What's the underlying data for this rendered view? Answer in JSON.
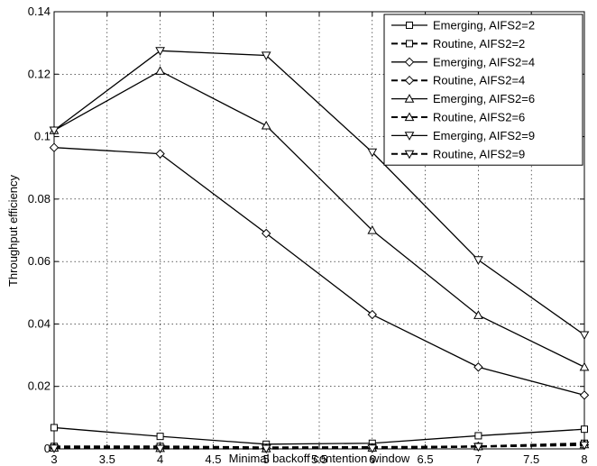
{
  "chart_data": {
    "type": "line",
    "title": "",
    "xlabel": "Minimal backoff contention window",
    "ylabel": "Throughput efficiency",
    "xlim": [
      3,
      8
    ],
    "ylim": [
      0,
      0.14
    ],
    "x": [
      3,
      4,
      5,
      6,
      7,
      8
    ],
    "xticks": [
      "3",
      "3.5",
      "4",
      "4.5",
      "5",
      "5.5",
      "6",
      "6.5",
      "7",
      "7.5",
      "8"
    ],
    "yticks": [
      "0",
      "0.02",
      "0.04",
      "0.06",
      "0.08",
      "0.1",
      "0.12",
      "0.14"
    ],
    "grid": true,
    "legend_position": "top-right",
    "series": [
      {
        "name": "Emerging, AIFS2=2",
        "marker": "square",
        "dashed": false,
        "values": [
          0.0068,
          0.004,
          0.0015,
          0.0018,
          0.0042,
          0.0063
        ]
      },
      {
        "name": "Routine, AIFS2=2",
        "marker": "square",
        "dashed": true,
        "values": [
          0.0008,
          0.0008,
          0.0005,
          0.0006,
          0.0008,
          0.0018
        ]
      },
      {
        "name": "Emerging, AIFS2=4",
        "marker": "diamond",
        "dashed": false,
        "values": [
          0.0965,
          0.0945,
          0.069,
          0.043,
          0.0262,
          0.0172
        ]
      },
      {
        "name": "Routine, AIFS2=4",
        "marker": "diamond",
        "dashed": true,
        "values": [
          0.0004,
          0.0002,
          0.0002,
          0.0003,
          0.0008,
          0.0013
        ]
      },
      {
        "name": "Emerging, AIFS2=6",
        "marker": "triangle-up",
        "dashed": false,
        "values": [
          0.102,
          0.121,
          0.1035,
          0.07,
          0.0428,
          0.0262
        ]
      },
      {
        "name": "Routine, AIFS2=6",
        "marker": "triangle-up",
        "dashed": true,
        "values": [
          0.0003,
          0.0002,
          0.0001,
          0.0003,
          0.0008,
          0.0014
        ]
      },
      {
        "name": "Emerging, AIFS2=9",
        "marker": "triangle-down",
        "dashed": false,
        "values": [
          0.102,
          0.1275,
          0.126,
          0.095,
          0.0605,
          0.0365
        ]
      },
      {
        "name": "Routine, AIFS2=9",
        "marker": "triangle-down",
        "dashed": true,
        "values": [
          0.0002,
          0.0001,
          0.0001,
          0.0002,
          0.0007,
          0.0012
        ]
      }
    ]
  }
}
